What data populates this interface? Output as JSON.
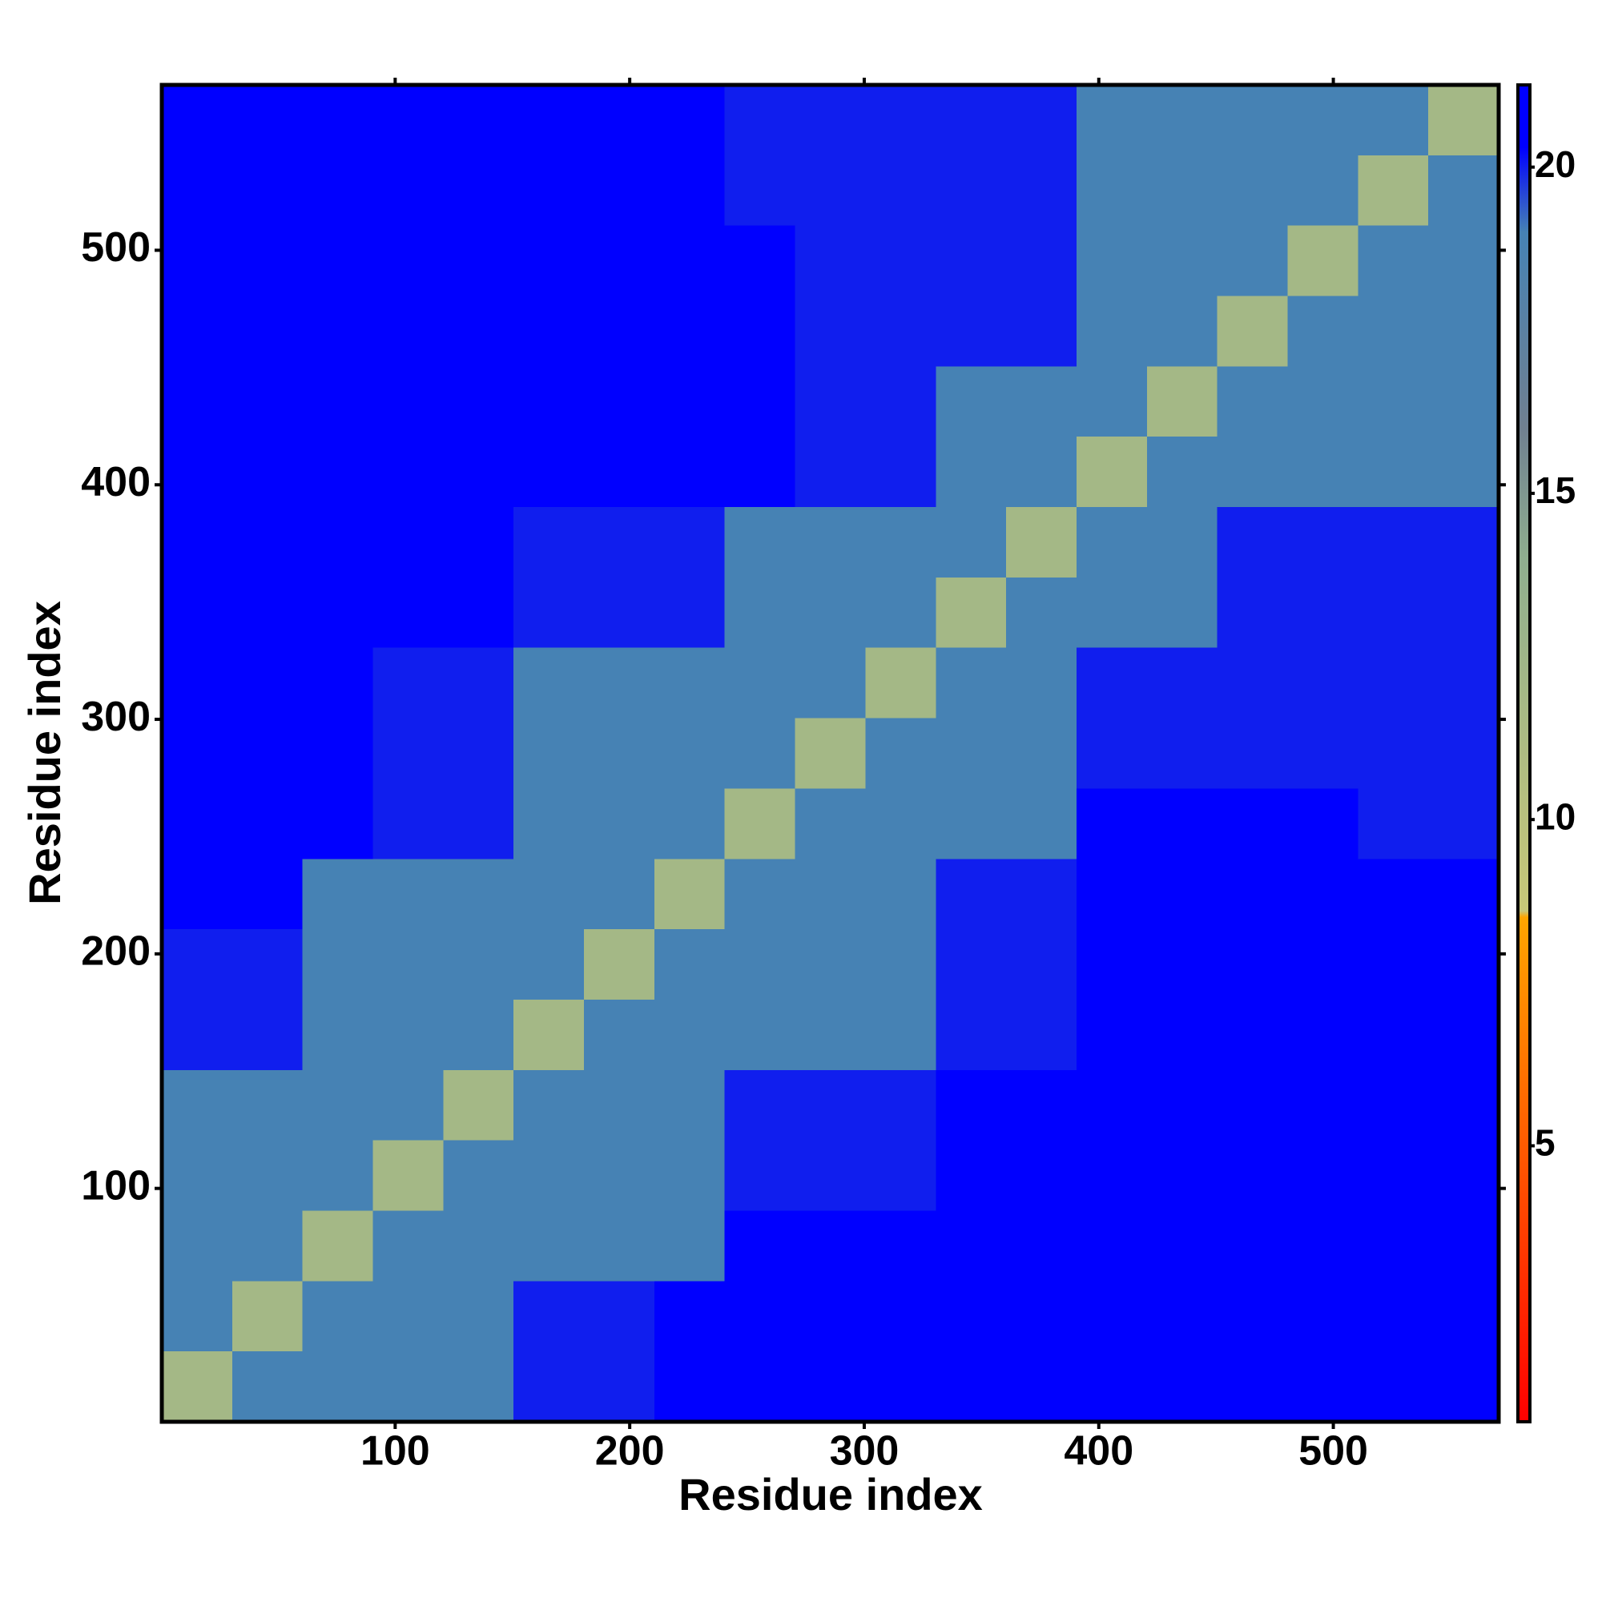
{
  "chart_data": {
    "type": "heatmap",
    "xlabel": "Residue index",
    "ylabel": "Residue index",
    "xlim": [
      0.5,
      570.5
    ],
    "ylim": [
      0.5,
      570.5
    ],
    "xticks": [
      100,
      200,
      300,
      400,
      500
    ],
    "yticks": [
      100,
      200,
      300,
      400,
      500
    ],
    "x_edges": [
      0.5,
      30.5,
      60.5,
      90.5,
      120.5,
      150.5,
      180.5,
      210.5,
      240.5,
      270.5,
      300.5,
      330.5,
      360.5,
      390.5,
      420.5,
      450.5,
      480.5,
      510.5,
      540.5,
      570.5
    ],
    "y_edges": [
      0.5,
      30.5,
      60.5,
      90.5,
      120.5,
      150.5,
      180.5,
      210.5,
      240.5,
      270.5,
      300.5,
      330.5,
      360.5,
      390.5,
      420.5,
      450.5,
      480.5,
      510.5,
      540.5,
      570.5
    ],
    "z": [
      [
        12,
        19,
        19,
        19,
        19,
        20,
        20,
        21,
        21,
        21,
        21,
        21,
        21,
        21,
        21,
        21,
        21,
        21,
        21
      ],
      [
        19,
        12,
        19,
        19,
        19,
        20,
        20,
        21,
        21,
        21,
        21,
        21,
        21,
        21,
        21,
        21,
        21,
        21,
        21
      ],
      [
        19,
        19,
        12,
        19,
        19,
        19,
        19,
        19,
        21,
        21,
        21,
        21,
        21,
        21,
        21,
        21,
        21,
        21,
        21
      ],
      [
        19,
        19,
        19,
        12,
        19,
        19,
        19,
        19,
        20,
        20,
        20,
        21,
        21,
        21,
        21,
        21,
        21,
        21,
        21
      ],
      [
        19,
        19,
        19,
        19,
        12,
        19,
        19,
        19,
        20,
        20,
        20,
        21,
        21,
        21,
        21,
        21,
        21,
        21,
        21
      ],
      [
        20,
        20,
        19,
        19,
        19,
        12,
        19,
        19,
        19,
        19,
        19,
        20,
        20,
        21,
        21,
        21,
        21,
        21,
        21
      ],
      [
        20,
        20,
        19,
        19,
        19,
        19,
        12,
        19,
        19,
        19,
        19,
        20,
        20,
        21,
        21,
        21,
        21,
        21,
        21
      ],
      [
        21,
        21,
        19,
        19,
        19,
        19,
        19,
        12,
        19,
        19,
        19,
        20,
        20,
        21,
        21,
        21,
        21,
        21,
        21
      ],
      [
        21,
        21,
        21,
        20,
        20,
        19,
        19,
        19,
        12,
        19,
        19,
        19,
        19,
        21,
        21,
        21,
        21,
        20,
        20
      ],
      [
        21,
        21,
        21,
        20,
        20,
        19,
        19,
        19,
        19,
        12,
        19,
        19,
        19,
        20,
        20,
        20,
        20,
        20,
        20
      ],
      [
        21,
        21,
        21,
        20,
        20,
        19,
        19,
        19,
        19,
        19,
        12,
        19,
        19,
        20,
        20,
        20,
        20,
        20,
        20
      ],
      [
        21,
        21,
        21,
        21,
        21,
        20,
        20,
        20,
        19,
        19,
        19,
        12,
        19,
        19,
        19,
        20,
        20,
        20,
        20
      ],
      [
        21,
        21,
        21,
        21,
        21,
        20,
        20,
        20,
        19,
        19,
        19,
        19,
        12,
        19,
        19,
        20,
        20,
        20,
        20
      ],
      [
        21,
        21,
        21,
        21,
        21,
        21,
        21,
        21,
        21,
        20,
        20,
        19,
        19,
        12,
        19,
        19,
        19,
        19,
        19
      ],
      [
        21,
        21,
        21,
        21,
        21,
        21,
        21,
        21,
        21,
        20,
        20,
        19,
        19,
        19,
        12,
        19,
        19,
        19,
        19
      ],
      [
        21,
        21,
        21,
        21,
        21,
        21,
        21,
        21,
        21,
        20,
        20,
        20,
        20,
        19,
        19,
        12,
        19,
        19,
        19
      ],
      [
        21,
        21,
        21,
        21,
        21,
        21,
        21,
        21,
        21,
        20,
        20,
        20,
        20,
        19,
        19,
        19,
        12,
        19,
        19
      ],
      [
        21,
        21,
        21,
        21,
        21,
        21,
        21,
        21,
        20,
        20,
        20,
        20,
        20,
        19,
        19,
        19,
        19,
        12,
        19
      ],
      [
        21,
        21,
        21,
        21,
        21,
        21,
        21,
        21,
        20,
        20,
        20,
        20,
        20,
        19,
        19,
        19,
        19,
        19,
        12
      ]
    ],
    "clim": [
      0.77,
      21.26
    ],
    "cticks": [
      5,
      10,
      15,
      20
    ],
    "colorscale": [
      {
        "value": 0.77,
        "color": "#ff0000"
      },
      {
        "value": 8.5,
        "color": "#ffa500"
      },
      {
        "value": 8.6,
        "color": "#c8c878"
      },
      {
        "value": 14,
        "color": "#8fae8f"
      },
      {
        "value": 16,
        "color": "#708090"
      },
      {
        "value": 19,
        "color": "#4682b4"
      },
      {
        "value": 20.3,
        "color": "#0000ff"
      },
      {
        "value": 21.26,
        "color": "#0000ff"
      }
    ]
  }
}
